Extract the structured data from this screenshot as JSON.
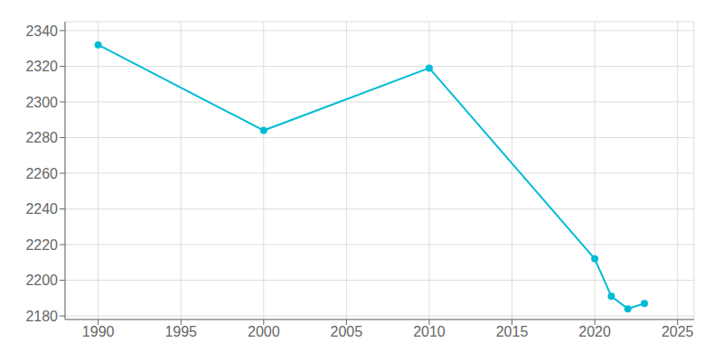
{
  "chart_data": {
    "type": "line",
    "x": [
      1990,
      2000,
      2010,
      2020,
      2021,
      2022,
      2023
    ],
    "values": [
      2332,
      2284,
      2319,
      2212,
      2191,
      2184,
      2187
    ],
    "color": "#00bcd4",
    "marker": "circle",
    "xlim": [
      1988,
      2026
    ],
    "ylim": [
      2178,
      2345
    ],
    "xticks": [
      1990,
      1995,
      2000,
      2005,
      2010,
      2015,
      2020,
      2025
    ],
    "yticks": [
      2180,
      2200,
      2220,
      2240,
      2260,
      2280,
      2300,
      2320,
      2340
    ],
    "grid": true
  }
}
